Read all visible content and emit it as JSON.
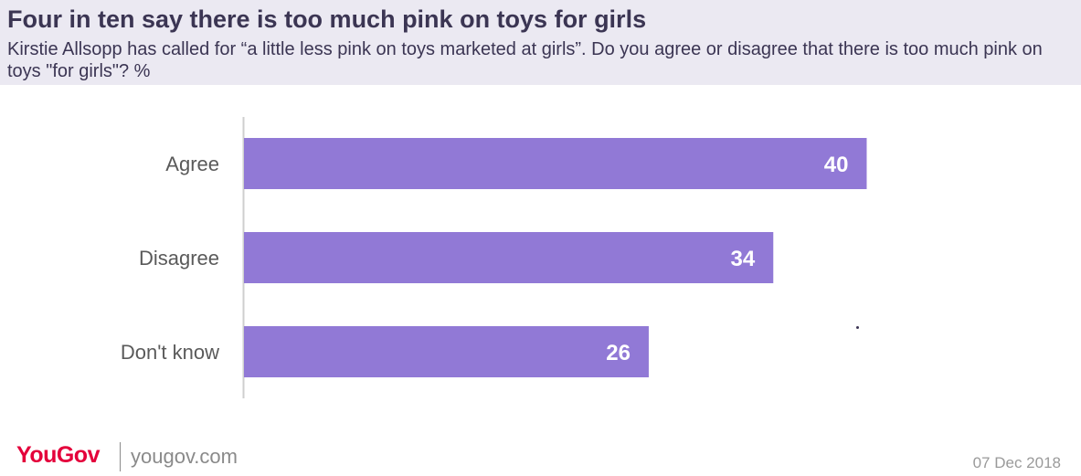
{
  "chart_data": {
    "type": "bar",
    "orientation": "horizontal",
    "title": "Four in ten say there is too much pink on toys for girls",
    "subtitle": "Kirstie Allsopp has called for “a little less pink on toys marketed at girls”. Do you agree or disagree that there is too much pink on toys \"for girls\"? %",
    "categories": [
      "Agree",
      "Disagree",
      "Don't know"
    ],
    "values": [
      40,
      34,
      26
    ],
    "xlim": [
      0,
      54
    ],
    "grid": false,
    "xlabel": "",
    "ylabel": ""
  },
  "footer": {
    "logo": "YouGov",
    "site": "yougov.com",
    "date": "07 Dec 2018"
  },
  "colors": {
    "bar": "#9179d6",
    "label_text": "#5a5a5a",
    "value_text": "#ffffff",
    "axis": "#cfcfcf",
    "header_bg": "#ebe9f2",
    "title_text": "#3b3553",
    "logo": "#e4003b"
  }
}
